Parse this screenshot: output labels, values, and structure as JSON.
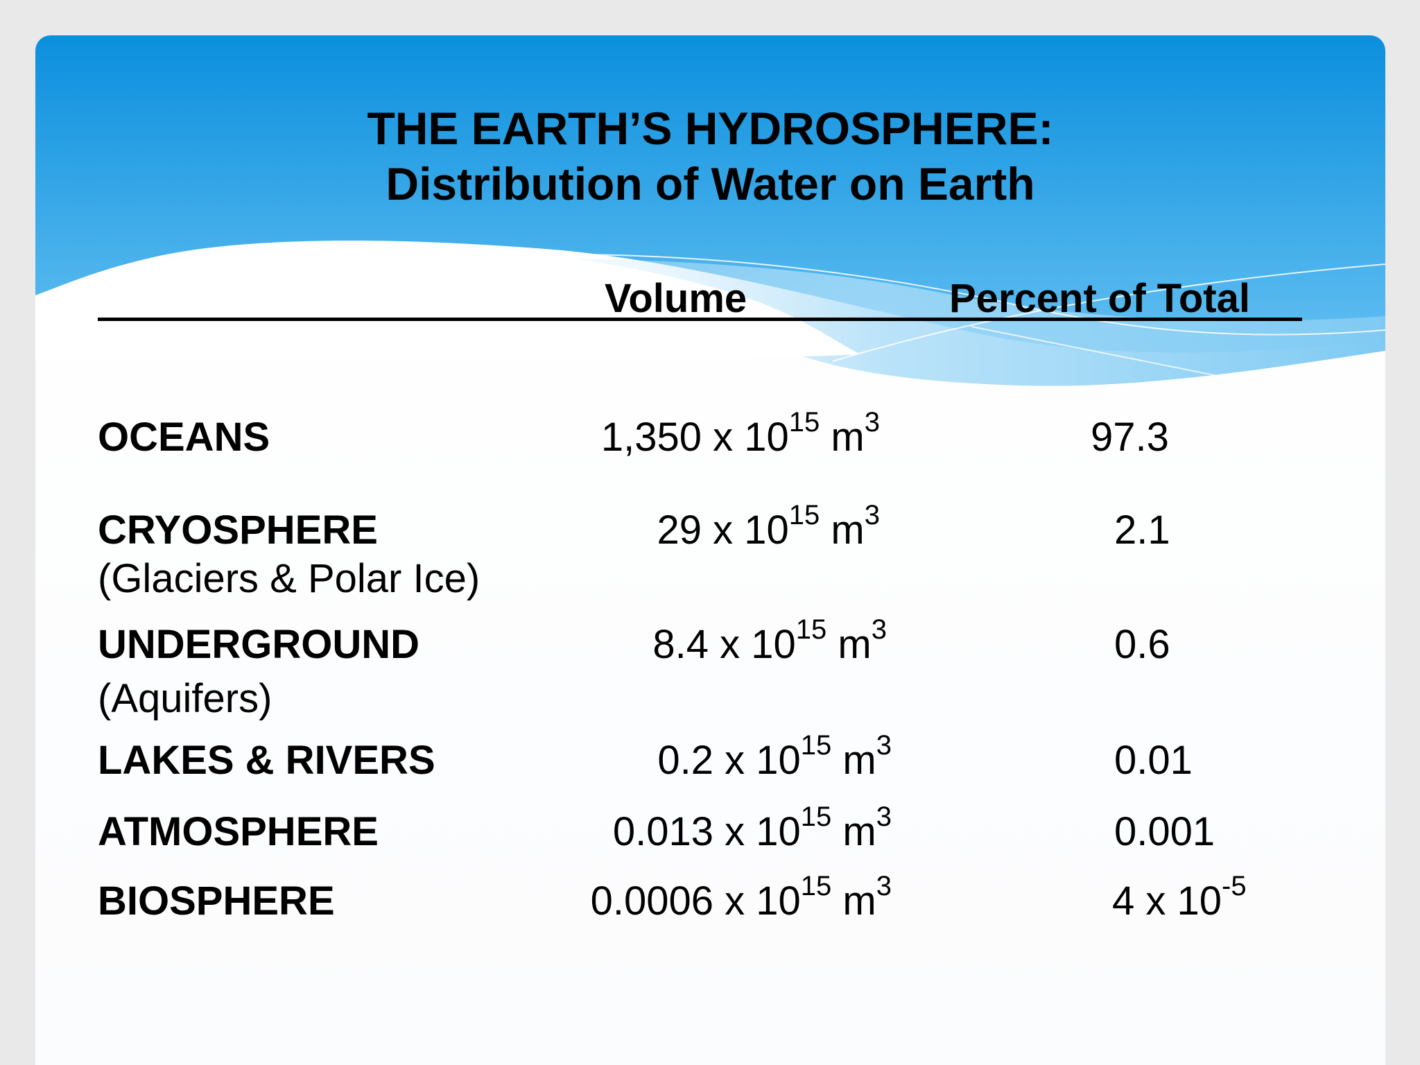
{
  "title": {
    "line1": "THE EARTH’S HYDROSPHERE:",
    "line2": "Distribution of Water on Earth"
  },
  "table": {
    "headers": {
      "volume": "Volume",
      "percent": "Percent of Total"
    },
    "unit": {
      "times": "x 10",
      "exponent": "15",
      "m": "m",
      "cube": "3"
    },
    "rows": [
      {
        "name": "OCEANS",
        "sub": "",
        "volume_coeff": "1,350",
        "percent": "97.3",
        "percent_exp": ""
      },
      {
        "name": "CRYOSPHERE",
        "sub": "(Glaciers & Polar Ice)",
        "volume_coeff": "29",
        "percent": "2.1",
        "percent_exp": ""
      },
      {
        "name": "UNDERGROUND",
        "sub": "(Aquifers)",
        "volume_coeff": "8.4",
        "percent": "0.6",
        "percent_exp": ""
      },
      {
        "name": "LAKES & RIVERS",
        "sub": "",
        "volume_coeff": "0.2",
        "percent": "0.01",
        "percent_exp": ""
      },
      {
        "name": "ATMOSPHERE",
        "sub": "",
        "volume_coeff": "0.013",
        "percent": "0.001",
        "percent_exp": ""
      },
      {
        "name": "BIOSPHERE",
        "sub": "",
        "volume_coeff": "0.0006",
        "percent": "4 x 10",
        "percent_exp": "-5"
      }
    ]
  },
  "colors": {
    "header_blue_top": "#0b8fde",
    "header_blue_bottom": "#60bdf0",
    "wave_light": "#a9dcf8",
    "text": "#000000",
    "background": "#ffffff"
  }
}
